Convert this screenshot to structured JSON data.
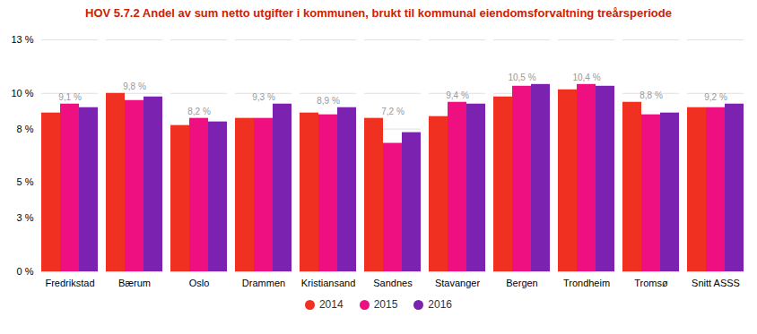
{
  "chart_data": {
    "type": "bar",
    "title": "HOV 5.7.2 Andel av sum netto utgifter i kommunen, brukt til kommunal eiendomsforvaltning treårsperiode",
    "categories": [
      "Fredrikstad",
      "Bærum",
      "Oslo",
      "Drammen",
      "Kristiansand",
      "Sandnes",
      "Stavanger",
      "Bergen",
      "Trondheim",
      "Tromsø",
      "Snitt ASSS"
    ],
    "series": [
      {
        "name": "2014",
        "color": "#F03020",
        "values": [
          8.9,
          10.0,
          8.2,
          8.6,
          8.9,
          8.6,
          8.7,
          9.8,
          10.2,
          9.5,
          9.2
        ]
      },
      {
        "name": "2015",
        "color": "#EE1080",
        "values": [
          9.4,
          9.6,
          8.6,
          8.6,
          8.8,
          7.2,
          9.5,
          10.4,
          10.5,
          8.8,
          9.2
        ]
      },
      {
        "name": "2016",
        "color": "#7B22B0",
        "values": [
          9.2,
          9.8,
          8.4,
          9.4,
          9.2,
          7.8,
          9.4,
          10.5,
          10.4,
          8.9,
          9.4
        ]
      }
    ],
    "annotations": [
      {
        "category": "Fredrikstad",
        "text": "9,1 %"
      },
      {
        "category": "Bærum",
        "text": "9,8 %"
      },
      {
        "category": "Oslo",
        "text": "8,2 %"
      },
      {
        "category": "Drammen",
        "text": "9,3 %"
      },
      {
        "category": "Kristiansand",
        "text": "8,9 %"
      },
      {
        "category": "Sandnes",
        "text": "7,2 %"
      },
      {
        "category": "Stavanger",
        "text": "9,4 %"
      },
      {
        "category": "Bergen",
        "text": "10,5 %"
      },
      {
        "category": "Trondheim",
        "text": "10,4 %"
      },
      {
        "category": "Tromsø",
        "text": "8,8 %"
      },
      {
        "category": "Snitt ASSS",
        "text": "9,2 %"
      }
    ],
    "ylim": [
      0,
      13
    ],
    "yticks": [
      {
        "value": 0,
        "label": "0 %"
      },
      {
        "value": 3,
        "label": "3 %"
      },
      {
        "value": 5,
        "label": "5 %"
      },
      {
        "value": 8,
        "label": "8 %"
      },
      {
        "value": 10,
        "label": "10 %"
      },
      {
        "value": 13,
        "label": "13 %"
      }
    ],
    "grid": true,
    "legend": "bottom"
  }
}
